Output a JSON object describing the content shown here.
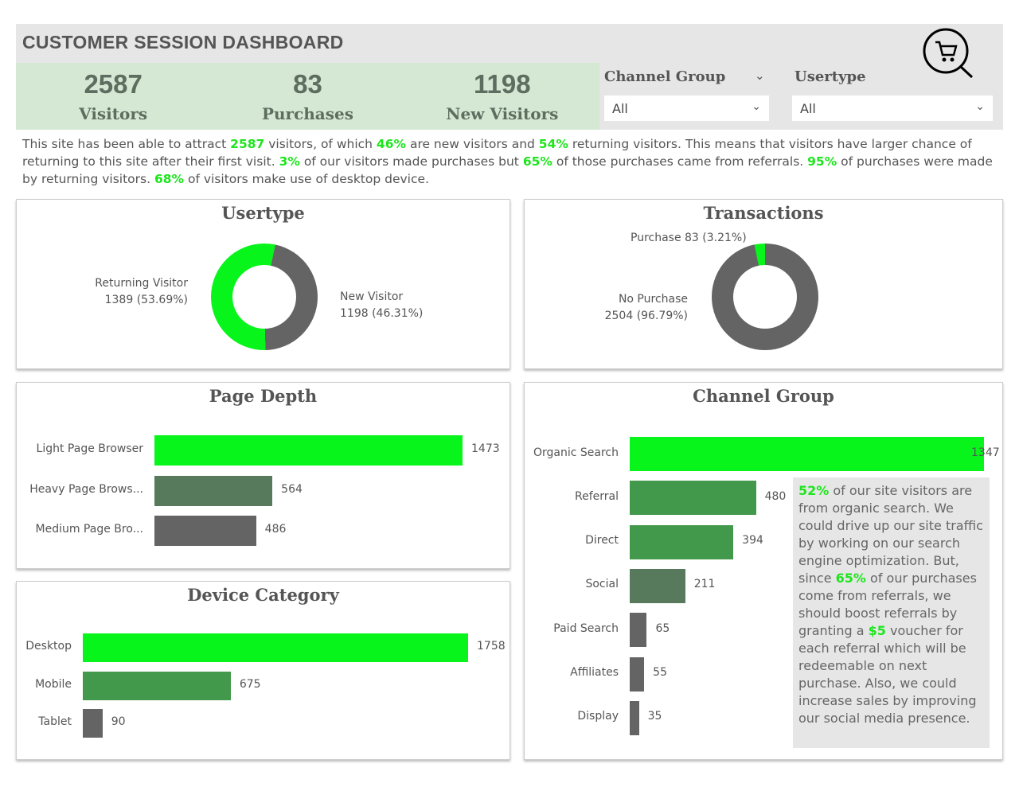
{
  "title": "CUSTOMER SESSION DASHBOARD",
  "kpis": [
    {
      "value": "2587",
      "label": "Visitors"
    },
    {
      "value": "83",
      "label": "Purchases"
    },
    {
      "value": "1198",
      "label": "New Visitors"
    }
  ],
  "filters": {
    "channel": {
      "label": "Channel Group",
      "value": "All"
    },
    "usertype": {
      "label": "Usertype",
      "value": "All"
    }
  },
  "summary": {
    "p1": "This site has been able to attract ",
    "v1": "2587",
    "p2": " visitors, of which  ",
    "v2": "46%",
    "p3": " are new visitors and ",
    "v4": "54%",
    "p4": " returning visitors. This means that visitors have larger chance of returning to this site after their first visit.  ",
    "v5": "3%",
    "p5": " of our visitors made purchases but ",
    "v6": "65%",
    "p6": " of those purchases came from referrals. ",
    "v7": "95%",
    "p7": " of purchases were made by returning visitors. ",
    "v8": "68%",
    "p8": " of visitors make use of desktop device."
  },
  "colors": {
    "bright": "#08f51c",
    "mid": "#43994b",
    "dark": "#587a5c",
    "gray": "#646464"
  },
  "chart_data": [
    {
      "type": "pie",
      "title": "Usertype",
      "slices": [
        {
          "name": "New Visitor",
          "value": 1198,
          "pct": 46.31,
          "label": "New Visitor",
          "sub": "1198 (46.31%)"
        },
        {
          "name": "Returning Visitor",
          "value": 1389,
          "pct": 53.69,
          "label": "Returning Visitor",
          "sub": "1389 (53.69%)"
        }
      ]
    },
    {
      "type": "pie",
      "title": "Transactions",
      "slices": [
        {
          "name": "Purchase",
          "value": 83,
          "pct": 3.21,
          "label": "Purchase 83 (3.21%)"
        },
        {
          "name": "No Purchase",
          "value": 2504,
          "pct": 96.79,
          "label": "No Purchase",
          "sub": "2504 (96.79%)"
        }
      ]
    },
    {
      "type": "bar",
      "title": "Page Depth",
      "categories": [
        "Light Page Browser",
        "Heavy Page Brows...",
        "Medium Page Bro..."
      ],
      "values": [
        1473,
        564,
        486
      ]
    },
    {
      "type": "bar",
      "title": "Device Category",
      "categories": [
        "Desktop",
        "Mobile",
        "Tablet"
      ],
      "values": [
        1758,
        675,
        90
      ]
    },
    {
      "type": "bar",
      "title": "Channel Group",
      "categories": [
        "Organic Search",
        "Referral",
        "Direct",
        "Social",
        "Paid Search",
        "Affiliates",
        "Display"
      ],
      "values": [
        1347,
        480,
        394,
        211,
        65,
        55,
        35
      ]
    }
  ],
  "note": {
    "v1": "52%",
    "t1": " of our site visitors are from organic search. We could drive up our site traffic by working on our search engine optimization. But, since ",
    "v2": "65%",
    "t2": " of our purchases come from referrals, we should boost referrals by granting a ",
    "v3": "$5",
    "t3": " voucher for each referral which will be redeemable on next purchase. Also, we could increase sales by improving our social media presence."
  }
}
